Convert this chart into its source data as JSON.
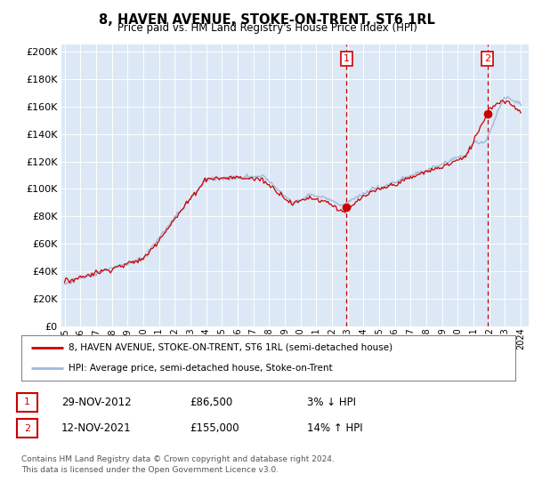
{
  "title": "8, HAVEN AVENUE, STOKE-ON-TRENT, ST6 1RL",
  "subtitle": "Price paid vs. HM Land Registry's House Price Index (HPI)",
  "legend_line1": "8, HAVEN AVENUE, STOKE-ON-TRENT, ST6 1RL (semi-detached house)",
  "legend_line2": "HPI: Average price, semi-detached house, Stoke-on-Trent",
  "footer": "Contains HM Land Registry data © Crown copyright and database right 2024.\nThis data is licensed under the Open Government Licence v3.0.",
  "annotation1_date": "29-NOV-2012",
  "annotation1_price": "£86,500",
  "annotation1_hpi": "3% ↓ HPI",
  "annotation2_date": "12-NOV-2021",
  "annotation2_price": "£155,000",
  "annotation2_hpi": "14% ↑ HPI",
  "hpi_color": "#a0b8d8",
  "price_color": "#cc0000",
  "annotation_color": "#cc0000",
  "plot_bg": "#dce8f5",
  "ylim": [
    0,
    205000
  ],
  "yticks": [
    0,
    20000,
    40000,
    60000,
    80000,
    100000,
    120000,
    140000,
    160000,
    180000,
    200000
  ],
  "marker1_x": 2012.917,
  "marker1_y": 86500,
  "marker2_x": 2021.875,
  "marker2_y": 155000,
  "vline1_x": 2012.917,
  "vline2_x": 2021.875,
  "xmin": 1994.8,
  "xmax": 2024.5
}
